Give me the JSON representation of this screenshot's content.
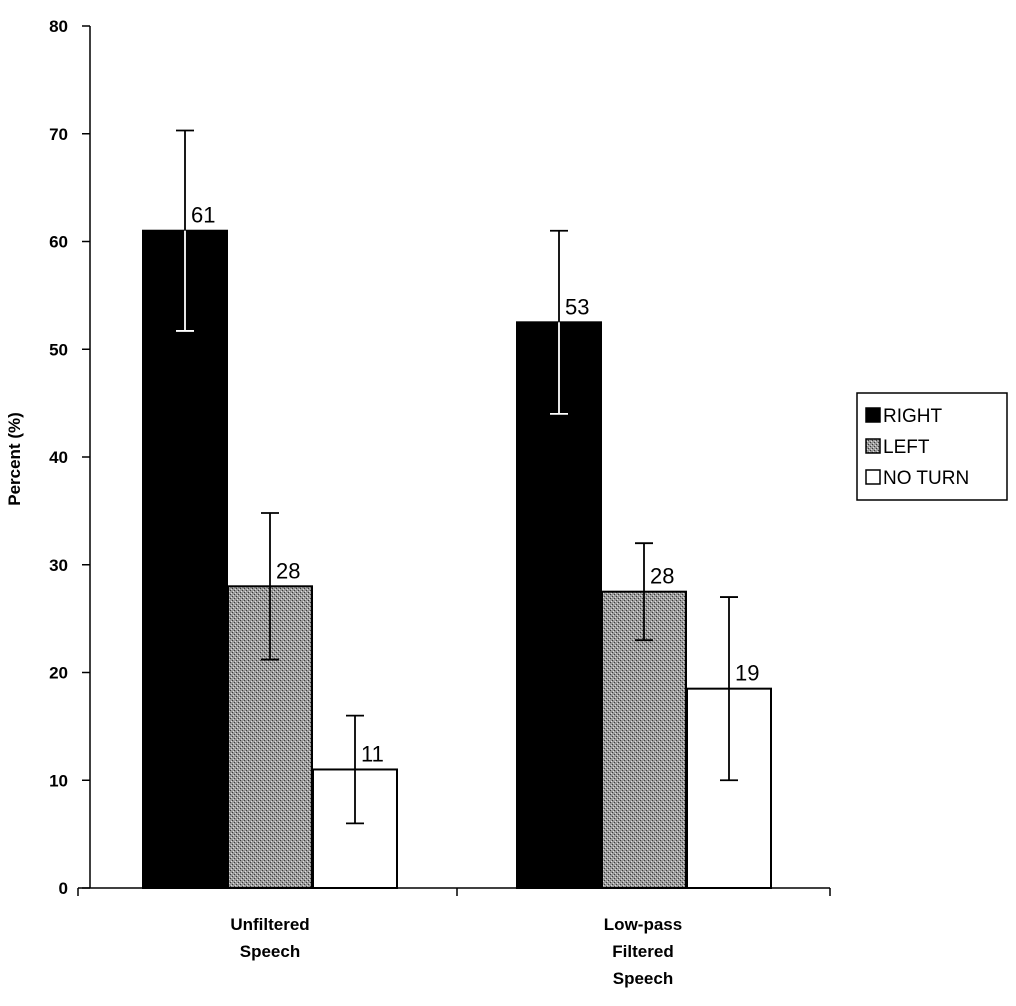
{
  "chart_data": {
    "type": "bar",
    "categories": [
      [
        "Unfiltered",
        "Speech"
      ],
      [
        "Low-pass",
        "Filtered",
        "Speech"
      ]
    ],
    "series": [
      {
        "name": "RIGHT",
        "color": "#000000",
        "pattern": "solid",
        "values": [
          61,
          52.5
        ],
        "labels": [
          "61",
          "53"
        ],
        "error": [
          9.3,
          8.5
        ]
      },
      {
        "name": "LEFT",
        "color": "#8a8a8a",
        "pattern": "stipple",
        "values": [
          28,
          27.5
        ],
        "labels": [
          "28",
          "28"
        ],
        "error": [
          6.8,
          4.5
        ]
      },
      {
        "name": "NO TURN",
        "color": "#ffffff",
        "pattern": "hollow",
        "values": [
          11,
          18.5
        ],
        "labels": [
          "11",
          "19"
        ],
        "error": [
          5,
          8.5
        ]
      }
    ],
    "ylabel": "Percent (%)",
    "xlabel": "",
    "title": "",
    "ylim": [
      0,
      80
    ],
    "yticks": [
      0,
      10,
      20,
      30,
      40,
      50,
      60,
      70,
      80
    ],
    "grid": false,
    "legend_position": "right"
  }
}
